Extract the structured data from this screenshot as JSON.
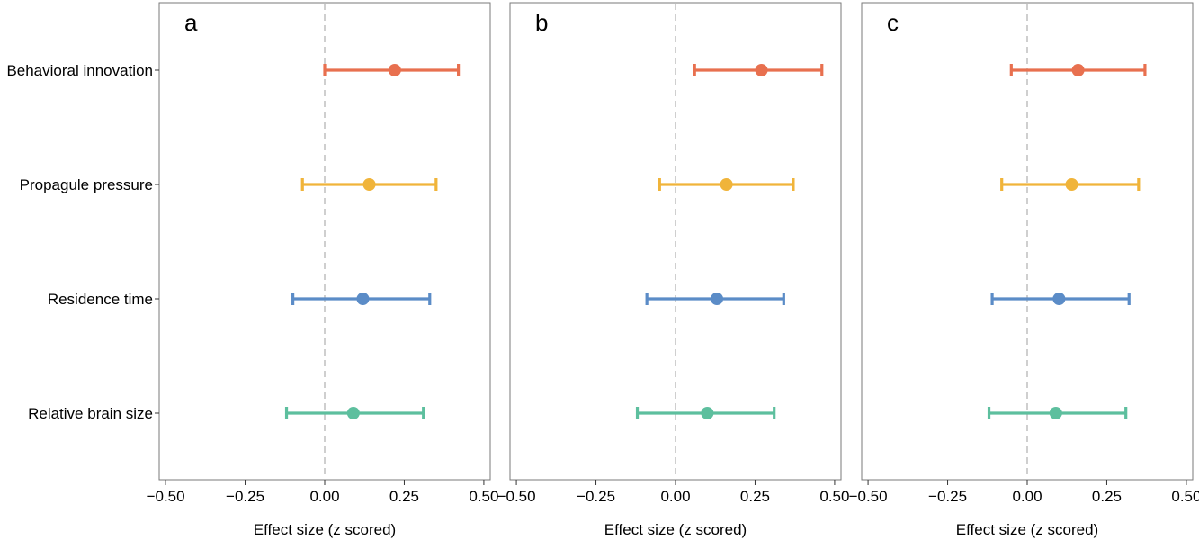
{
  "chart_data": {
    "type": "forest",
    "categories": [
      "Behavioral innovation",
      "Propagule pressure",
      "Residence time",
      "Relative brain size"
    ],
    "xlabel": "Effect size (z scored)",
    "xlim": [
      -0.52,
      0.52
    ],
    "xticks": [
      -0.5,
      -0.25,
      0.0,
      0.25,
      0.5
    ],
    "xtick_labels": [
      "−0.50",
      "−0.25",
      "0.00",
      "0.25",
      "0.50"
    ],
    "reference_line": 0,
    "grid": false,
    "colors": {
      "Behavioral innovation": "#e8704f",
      "Propagule pressure": "#f0b43a",
      "Residence time": "#5b8cc7",
      "Relative brain size": "#5dbf9e"
    },
    "panels": [
      {
        "label": "a",
        "estimates": [
          {
            "category": "Behavioral innovation",
            "estimate": 0.22,
            "lower": 0.0,
            "upper": 0.42
          },
          {
            "category": "Propagule pressure",
            "estimate": 0.14,
            "lower": -0.07,
            "upper": 0.35
          },
          {
            "category": "Residence time",
            "estimate": 0.12,
            "lower": -0.1,
            "upper": 0.33
          },
          {
            "category": "Relative brain size",
            "estimate": 0.09,
            "lower": -0.12,
            "upper": 0.31
          }
        ]
      },
      {
        "label": "b",
        "estimates": [
          {
            "category": "Behavioral innovation",
            "estimate": 0.27,
            "lower": 0.06,
            "upper": 0.46
          },
          {
            "category": "Propagule pressure",
            "estimate": 0.16,
            "lower": -0.05,
            "upper": 0.37
          },
          {
            "category": "Residence time",
            "estimate": 0.13,
            "lower": -0.09,
            "upper": 0.34
          },
          {
            "category": "Relative brain size",
            "estimate": 0.1,
            "lower": -0.12,
            "upper": 0.31
          }
        ]
      },
      {
        "label": "c",
        "estimates": [
          {
            "category": "Behavioral innovation",
            "estimate": 0.16,
            "lower": -0.05,
            "upper": 0.37
          },
          {
            "category": "Propagule pressure",
            "estimate": 0.14,
            "lower": -0.08,
            "upper": 0.35
          },
          {
            "category": "Residence time",
            "estimate": 0.1,
            "lower": -0.11,
            "upper": 0.32
          },
          {
            "category": "Relative brain size",
            "estimate": 0.09,
            "lower": -0.12,
            "upper": 0.31
          }
        ]
      }
    ]
  }
}
